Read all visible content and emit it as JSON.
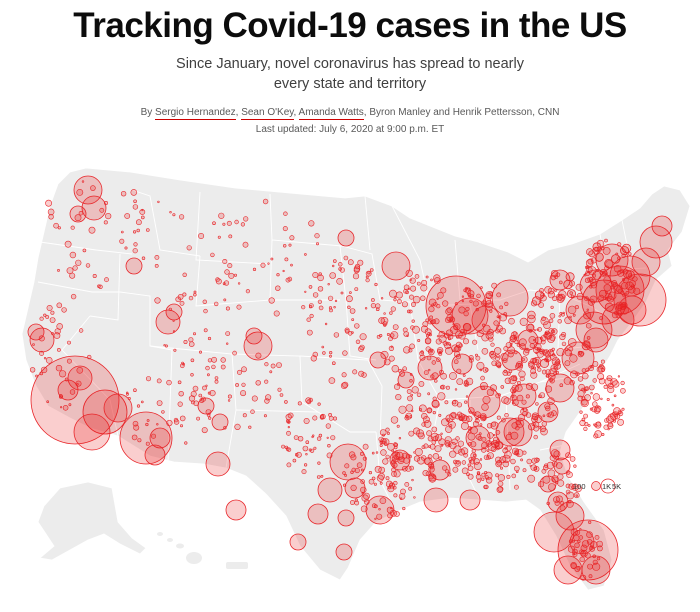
{
  "header": {
    "title": "Tracking Covid-19 cases in the US",
    "subtitle": "Since January, novel coronavirus has spread to nearly every state and territory",
    "byline": {
      "prefix": "By ",
      "authors": [
        {
          "name": "Sergio Hernandez",
          "sep": ", ",
          "underlined": true
        },
        {
          "name": "Sean O'Key",
          "sep": ", ",
          "underlined": true
        },
        {
          "name": "Amanda Watts",
          "sep": ", ",
          "underlined": true
        },
        {
          "name": "Byron Manley",
          "sep": " and ",
          "underlined": false
        },
        {
          "name": "Henrik Pettersson",
          "sep": ", ",
          "underlined": false
        },
        {
          "name": "CNN",
          "sep": "",
          "underlined": false
        }
      ]
    },
    "updated": "Last updated: July 6, 2020 at 9:00 p.m. ET"
  },
  "map": {
    "legend": {
      "labels": [
        "100",
        "1K",
        "5K"
      ]
    },
    "colors": {
      "land": "#ececec",
      "border": "#ffffff",
      "bubble_fill": "rgba(230,30,30,0.22)",
      "bubble_stroke": "#e8262a"
    }
  }
}
